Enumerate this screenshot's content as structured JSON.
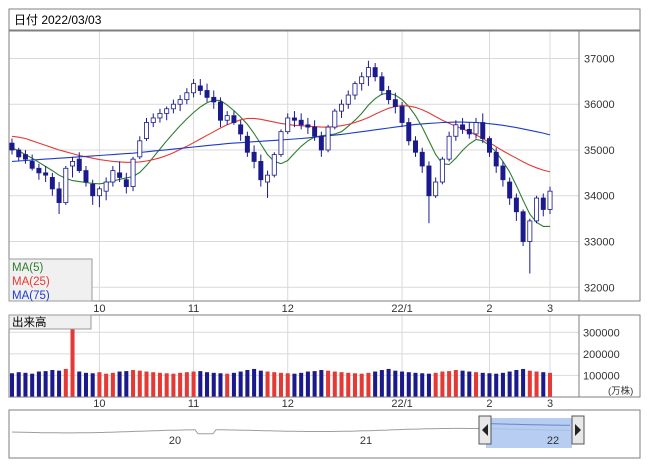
{
  "header": {
    "date_label": "日付 2022/03/03"
  },
  "legend": [
    {
      "label": "MA(5)",
      "color": "#2e7d32"
    },
    {
      "label": "MA(25)",
      "color": "#e53935"
    },
    {
      "label": "MA(75)",
      "color": "#1e3cc8"
    }
  ],
  "volume_label": "出来高",
  "volume_unit": "(万株)",
  "colors": {
    "up": "#e53935",
    "down": "#1a1a8c",
    "navigator_fill": "#aac4f0"
  },
  "chart_data": [
    {
      "type": "candlestick",
      "x_tick_labels": [
        "10",
        "11",
        "12",
        "22/1",
        "2",
        "3"
      ],
      "y_ticks": [
        32000,
        33000,
        34000,
        35000,
        36000,
        37000
      ],
      "ylim": [
        31700,
        37600
      ],
      "ohlc": [
        [
          35150,
          35250,
          34900,
          35000
        ],
        [
          35000,
          35050,
          34750,
          34850
        ],
        [
          34900,
          35000,
          34700,
          34800
        ],
        [
          34750,
          34900,
          34550,
          34600
        ],
        [
          34600,
          34700,
          34350,
          34500
        ],
        [
          34500,
          34650,
          34300,
          34450
        ],
        [
          34400,
          34500,
          34000,
          34150
        ],
        [
          34150,
          34300,
          33600,
          33850
        ],
        [
          33850,
          34650,
          33800,
          34600
        ],
        [
          34650,
          34850,
          34400,
          34750
        ],
        [
          34800,
          34950,
          34500,
          34550
        ],
        [
          34550,
          34650,
          34200,
          34300
        ],
        [
          34250,
          34350,
          33800,
          34000
        ],
        [
          34000,
          34200,
          33750,
          34150
        ],
        [
          34100,
          34400,
          33900,
          34300
        ],
        [
          34300,
          34650,
          34200,
          34550
        ],
        [
          34500,
          34750,
          34300,
          34400
        ],
        [
          34350,
          34500,
          34050,
          34200
        ],
        [
          34200,
          34850,
          34100,
          34800
        ],
        [
          34850,
          35300,
          34800,
          35200
        ],
        [
          35250,
          35700,
          35200,
          35600
        ],
        [
          35600,
          35800,
          35500,
          35700
        ],
        [
          35700,
          35900,
          35600,
          35800
        ],
        [
          35800,
          35950,
          35650,
          35900
        ],
        [
          35900,
          36100,
          35800,
          36000
        ],
        [
          36000,
          36200,
          35850,
          36100
        ],
        [
          36100,
          36350,
          36000,
          36250
        ],
        [
          36250,
          36550,
          36150,
          36450
        ],
        [
          36400,
          36550,
          36200,
          36300
        ],
        [
          36300,
          36450,
          36050,
          36150
        ],
        [
          36150,
          36300,
          35900,
          36050
        ],
        [
          36050,
          36150,
          35500,
          35650
        ],
        [
          35650,
          35850,
          35550,
          35750
        ],
        [
          35750,
          35850,
          35550,
          35600
        ],
        [
          35550,
          35650,
          35200,
          35350
        ],
        [
          35300,
          35400,
          34850,
          34950
        ],
        [
          34950,
          35100,
          34600,
          34750
        ],
        [
          34750,
          34900,
          34200,
          34350
        ],
        [
          34300,
          34550,
          33950,
          34450
        ],
        [
          34450,
          34950,
          34400,
          34900
        ],
        [
          34900,
          35450,
          34850,
          35400
        ],
        [
          35400,
          35800,
          35350,
          35700
        ],
        [
          35700,
          35850,
          35500,
          35650
        ],
        [
          35650,
          35800,
          35450,
          35550
        ],
        [
          35550,
          35700,
          35350,
          35500
        ],
        [
          35500,
          35650,
          35200,
          35300
        ],
        [
          35300,
          35400,
          34850,
          35000
        ],
        [
          35000,
          35550,
          34950,
          35500
        ],
        [
          35500,
          35900,
          35450,
          35850
        ],
        [
          35850,
          36100,
          35700,
          36000
        ],
        [
          36000,
          36300,
          35900,
          36200
        ],
        [
          36200,
          36500,
          36100,
          36450
        ],
        [
          36450,
          36700,
          36300,
          36600
        ],
        [
          36600,
          36950,
          36400,
          36800
        ],
        [
          36800,
          36900,
          36500,
          36600
        ],
        [
          36600,
          36700,
          36200,
          36300
        ],
        [
          36300,
          36400,
          36000,
          36100
        ],
        [
          36100,
          36250,
          35800,
          35950
        ],
        [
          35950,
          36050,
          35500,
          35600
        ],
        [
          35600,
          35700,
          35100,
          35200
        ],
        [
          35200,
          35300,
          34850,
          34950
        ],
        [
          34950,
          35050,
          34500,
          34650
        ],
        [
          34650,
          34750,
          33400,
          34000
        ],
        [
          34000,
          34400,
          33950,
          34300
        ],
        [
          34300,
          34850,
          34250,
          34800
        ],
        [
          34800,
          35400,
          34750,
          35300
        ],
        [
          35300,
          35650,
          35200,
          35550
        ],
        [
          35550,
          35700,
          35350,
          35450
        ],
        [
          35450,
          35600,
          35250,
          35350
        ],
        [
          35350,
          35700,
          35250,
          35600
        ],
        [
          35600,
          35800,
          35150,
          35250
        ],
        [
          35250,
          35300,
          34850,
          34950
        ],
        [
          34950,
          35050,
          34500,
          34650
        ],
        [
          34650,
          34750,
          34200,
          34350
        ],
        [
          34300,
          34400,
          33800,
          33950
        ],
        [
          33950,
          34050,
          33450,
          33650
        ],
        [
          33650,
          33700,
          32900,
          33000
        ],
        [
          33000,
          33500,
          32300,
          33450
        ],
        [
          33450,
          34000,
          33400,
          33950
        ],
        [
          33950,
          34050,
          33550,
          33700
        ],
        [
          33700,
          34200,
          33600,
          34100
        ]
      ],
      "ma_series": [
        {
          "name": "MA(5)",
          "values": [
            35050,
            34980,
            34900,
            34820,
            34730,
            34640,
            34550,
            34450,
            34380,
            34330,
            34310,
            34290,
            34270,
            34260,
            34280,
            34320,
            34360,
            34390,
            34420,
            34510,
            34660,
            34840,
            35020,
            35200,
            35370,
            35530,
            35680,
            35820,
            35940,
            36030,
            36090,
            36080,
            35980,
            35860,
            35720,
            35560,
            35360,
            35130,
            34900,
            34750,
            34700,
            34770,
            34930,
            35080,
            35200,
            35280,
            35310,
            35330,
            35350,
            35400,
            35520,
            35650,
            35800,
            35980,
            36120,
            36220,
            36240,
            36200,
            36100,
            35950,
            35750,
            35500,
            35200,
            34900,
            34700,
            34680,
            34820,
            34990,
            35130,
            35230,
            35200,
            35100,
            34950,
            34750,
            34520,
            34220,
            33900,
            33600,
            33420,
            33330,
            33330
          ]
        },
        {
          "name": "MA(25)",
          "values": [
            35300,
            35280,
            35250,
            35200,
            35150,
            35100,
            35050,
            35000,
            34960,
            34920,
            34880,
            34850,
            34820,
            34790,
            34770,
            34750,
            34740,
            34730,
            34730,
            34740,
            34760,
            34790,
            34830,
            34880,
            34940,
            35010,
            35080,
            35160,
            35240,
            35320,
            35400,
            35480,
            35550,
            35610,
            35660,
            35690,
            35690,
            35670,
            35640,
            35610,
            35580,
            35560,
            35540,
            35530,
            35520,
            35510,
            35500,
            35500,
            35510,
            35530,
            35560,
            35600,
            35650,
            35710,
            35780,
            35850,
            35910,
            35950,
            35970,
            35960,
            35930,
            35880,
            35810,
            35730,
            35650,
            35580,
            35520,
            35460,
            35400,
            35330,
            35250,
            35160,
            35070,
            34980,
            34900,
            34820,
            34740,
            34670,
            34610,
            34560,
            34520
          ]
        },
        {
          "name": "MA(75)",
          "values": [
            34750,
            34760,
            34770,
            34780,
            34790,
            34800,
            34810,
            34820,
            34830,
            34840,
            34850,
            34860,
            34870,
            34880,
            34890,
            34900,
            34910,
            34920,
            34930,
            34945,
            34960,
            34975,
            34990,
            35005,
            35020,
            35035,
            35050,
            35065,
            35080,
            35095,
            35110,
            35125,
            35140,
            35150,
            35160,
            35170,
            35180,
            35190,
            35200,
            35210,
            35220,
            35230,
            35240,
            35250,
            35265,
            35280,
            35295,
            35310,
            35325,
            35340,
            35360,
            35380,
            35400,
            35420,
            35440,
            35460,
            35480,
            35500,
            35520,
            35540,
            35560,
            35570,
            35580,
            35590,
            35600,
            35605,
            35610,
            35610,
            35605,
            35600,
            35590,
            35575,
            35560,
            35540,
            35515,
            35490,
            35460,
            35430,
            35400,
            35370,
            35330
          ]
        }
      ]
    },
    {
      "type": "bar",
      "name": "出来高",
      "y_ticks": [
        100000,
        200000,
        300000
      ],
      "ylim": [
        0,
        380000
      ],
      "values": [
        110000,
        115000,
        112000,
        108000,
        118000,
        120000,
        125000,
        122000,
        130000,
        340000,
        118000,
        112000,
        110000,
        115000,
        108000,
        112000,
        118000,
        120000,
        125000,
        122000,
        118000,
        115000,
        112000,
        110000,
        108000,
        112000,
        115000,
        118000,
        120000,
        115000,
        112000,
        110000,
        108000,
        112000,
        118000,
        125000,
        130000,
        122000,
        118000,
        115000,
        112000,
        110000,
        108000,
        112000,
        118000,
        120000,
        125000,
        122000,
        118000,
        115000,
        112000,
        110000,
        108000,
        112000,
        118000,
        125000,
        130000,
        122000,
        118000,
        115000,
        112000,
        110000,
        108000,
        112000,
        118000,
        120000,
        125000,
        122000,
        118000,
        115000,
        112000,
        110000,
        108000,
        112000,
        118000,
        125000,
        130000,
        122000,
        118000,
        115000,
        112000
      ]
    },
    {
      "type": "area",
      "name": "navigator",
      "x_tick_labels": [
        "20",
        "21",
        "22"
      ]
    }
  ]
}
